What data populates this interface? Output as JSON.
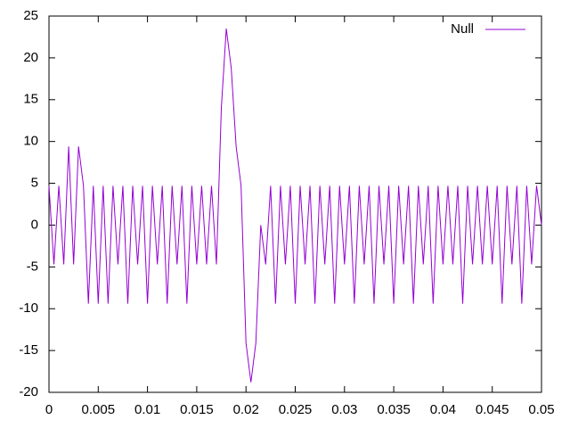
{
  "chart_data": {
    "type": "line",
    "x": [
      0,
      0.0005,
      0.001,
      0.0015,
      0.002,
      0.0025,
      0.003,
      0.0035,
      0.004,
      0.0045,
      0.005,
      0.0055,
      0.006,
      0.0065,
      0.007,
      0.0075,
      0.008,
      0.0085,
      0.009,
      0.0095,
      0.01,
      0.0105,
      0.011,
      0.0115,
      0.012,
      0.0125,
      0.013,
      0.0135,
      0.014,
      0.0145,
      0.015,
      0.0155,
      0.016,
      0.0165,
      0.017,
      0.0175,
      0.018,
      0.0185,
      0.019,
      0.0195,
      0.02,
      0.0205,
      0.021,
      0.0215,
      0.022,
      0.0225,
      0.023,
      0.0235,
      0.024,
      0.0245,
      0.025,
      0.0255,
      0.026,
      0.0265,
      0.027,
      0.0275,
      0.028,
      0.0285,
      0.029,
      0.0295,
      0.03,
      0.0305,
      0.031,
      0.0315,
      0.032,
      0.0325,
      0.033,
      0.0335,
      0.034,
      0.0345,
      0.035,
      0.0355,
      0.036,
      0.0365,
      0.037,
      0.0375,
      0.038,
      0.0385,
      0.039,
      0.0395,
      0.04,
      0.0405,
      0.041,
      0.0415,
      0.042,
      0.0425,
      0.043,
      0.0435,
      0.044,
      0.0445,
      0.045,
      0.0455,
      0.046,
      0.0465,
      0.047,
      0.0475,
      0.048,
      0.0485,
      0.049,
      0.0495,
      0.05
    ],
    "series": [
      {
        "name": "Null",
        "color": "#9400d3",
        "values": [
          4.7,
          -4.7,
          4.7,
          -4.7,
          9.4,
          -4.7,
          9.4,
          4.7,
          -9.4,
          4.7,
          -9.4,
          4.7,
          -9.4,
          4.7,
          -4.7,
          4.7,
          -9.4,
          4.7,
          -4.7,
          4.7,
          -9.4,
          4.7,
          -4.7,
          4.7,
          -9.4,
          4.7,
          -4.7,
          4.7,
          -9.4,
          4.7,
          -4.7,
          4.7,
          -4.7,
          4.7,
          -4.7,
          14.1,
          23.5,
          18.8,
          9.4,
          4.7,
          -14.1,
          -18.8,
          -14.1,
          0,
          -4.7,
          4.7,
          -9.4,
          4.7,
          -4.7,
          4.7,
          -9.4,
          4.7,
          -4.7,
          4.7,
          -9.4,
          4.7,
          -4.7,
          4.7,
          -9.4,
          4.7,
          -4.7,
          4.7,
          -9.4,
          4.7,
          -4.7,
          4.7,
          -9.4,
          4.7,
          -4.7,
          4.7,
          -9.4,
          4.7,
          -4.7,
          4.7,
          -9.4,
          4.7,
          -4.7,
          4.7,
          -9.4,
          4.7,
          -4.7,
          4.7,
          -4.7,
          4.7,
          -9.4,
          4.7,
          -4.7,
          4.7,
          -4.7,
          4.7,
          -4.7,
          4.7,
          -9.4,
          4.7,
          -4.7,
          4.7,
          -9.4,
          4.7,
          -4.7,
          4.7,
          0
        ]
      }
    ],
    "xlim": [
      0,
      0.05
    ],
    "ylim": [
      -20,
      25
    ],
    "xticks": [
      0,
      0.005,
      0.01,
      0.015,
      0.02,
      0.025,
      0.03,
      0.035,
      0.04,
      0.045,
      0.05
    ],
    "yticks": [
      -20,
      -15,
      -10,
      -5,
      0,
      5,
      10,
      15,
      20,
      25
    ],
    "legend": "top-right"
  }
}
